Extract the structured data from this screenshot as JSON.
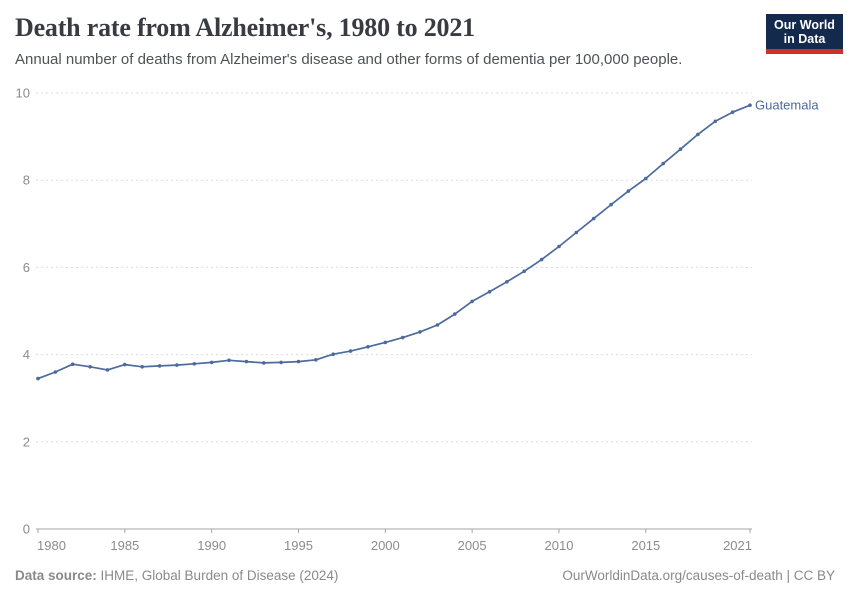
{
  "header": {
    "title": "Death rate from Alzheimer's, 1980 to 2021",
    "subtitle": "Annual number of deaths from Alzheimer's disease and other forms of dementia per 100,000 people.",
    "logo": {
      "line1": "Our World",
      "line2": "in Data"
    }
  },
  "chart_data": {
    "type": "line",
    "title": "Death rate from Alzheimer's, 1980 to 2021",
    "xlabel": "",
    "ylabel": "",
    "xlim": [
      1980,
      2021
    ],
    "ylim": [
      0,
      10
    ],
    "x_ticks": [
      1980,
      1985,
      1990,
      1995,
      2000,
      2005,
      2010,
      2015,
      2021
    ],
    "y_ticks": [
      0,
      2,
      4,
      6,
      8,
      10
    ],
    "grid": "horizontal-dashed",
    "legend_position": "end-of-line-label",
    "series": [
      {
        "name": "Guatemala",
        "color": "#4c6a9c",
        "x": [
          1980,
          1981,
          1982,
          1983,
          1984,
          1985,
          1986,
          1987,
          1988,
          1989,
          1990,
          1991,
          1992,
          1993,
          1994,
          1995,
          1996,
          1997,
          1998,
          1999,
          2000,
          2001,
          2002,
          2003,
          2004,
          2005,
          2006,
          2007,
          2008,
          2009,
          2010,
          2011,
          2012,
          2013,
          2014,
          2015,
          2016,
          2017,
          2018,
          2019,
          2020,
          2021
        ],
        "values": [
          3.45,
          3.6,
          3.78,
          3.72,
          3.65,
          3.77,
          3.72,
          3.74,
          3.76,
          3.79,
          3.82,
          3.87,
          3.84,
          3.81,
          3.82,
          3.84,
          3.88,
          4.01,
          4.08,
          4.18,
          4.28,
          4.39,
          4.52,
          4.68,
          4.93,
          5.22,
          5.44,
          5.67,
          5.91,
          6.18,
          6.48,
          6.8,
          7.12,
          7.44,
          7.75,
          8.04,
          8.38,
          8.71,
          9.05,
          9.35,
          9.56,
          9.72
        ]
      }
    ]
  },
  "footer": {
    "source_label": "Data source:",
    "source_text": " IHME, Global Burden of Disease (2024)",
    "credit": "OurWorldinData.org/causes-of-death | CC BY"
  },
  "colors": {
    "series_blue": "#4c6a9c",
    "logo_navy": "#142a4c",
    "logo_red": "#cf3129",
    "gridline": "#dcdcdc",
    "axis": "#a5a5a5",
    "tick_text": "#8c8c8c",
    "title_text": "#383c42",
    "subtitle_text": "#4e5358",
    "footer_text": "#8a8a8a"
  }
}
